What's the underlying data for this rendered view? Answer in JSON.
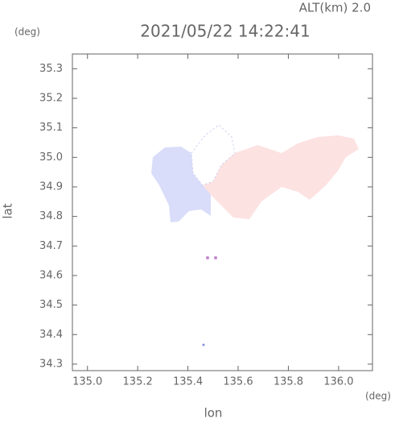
{
  "chart_data": {
    "type": "map",
    "title": "2021/05/22 14:22:41",
    "subtitle": "ALT(km) 2.0",
    "y_unit": "(deg)",
    "x_unit": "(deg)",
    "ylabel": "lat",
    "xlabel": "lon",
    "xlim": [
      134.94,
      136.135
    ],
    "ylim": [
      34.278,
      35.35
    ],
    "xticks": [
      {
        "value": 135.0,
        "label": "135.0"
      },
      135.2,
      135.4,
      135.6,
      135.8,
      {
        "value": 136.0,
        "label": "136.0"
      }
    ],
    "yticks": [
      35.3,
      35.2,
      35.1,
      {
        "value": 35.0,
        "label": "35.0"
      },
      34.9,
      34.8,
      34.7,
      34.6,
      34.5,
      34.4,
      34.3
    ]
  }
}
